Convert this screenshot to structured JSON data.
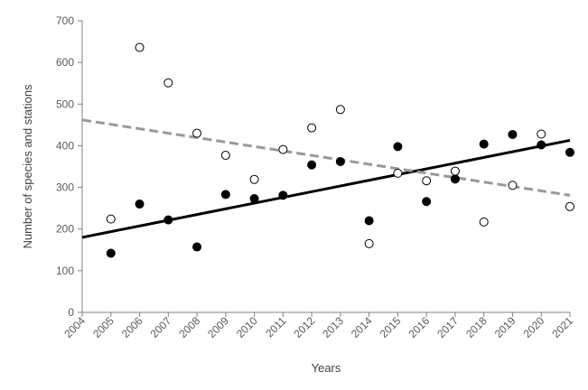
{
  "chart_data": {
    "type": "scatter",
    "xlabel": "Years",
    "ylabel": "Number of species and stations",
    "xlim": [
      2004,
      2021
    ],
    "ylim": [
      0,
      700
    ],
    "x_ticks": [
      "2004",
      "2005",
      "2006",
      "2007",
      "2008",
      "2009",
      "2010",
      "2011",
      "2012",
      "2013",
      "2014",
      "2015",
      "2016",
      "2017",
      "2018",
      "2019",
      "2020",
      "2021"
    ],
    "y_ticks": [
      "0",
      "100",
      "200",
      "300",
      "400",
      "500",
      "600",
      "700"
    ],
    "grid": false,
    "legend": "none",
    "series": [
      {
        "marker": "filled-circle",
        "color": "#000000",
        "x": [
          2005,
          2006,
          2007,
          2008,
          2009,
          2010,
          2011,
          2012,
          2013,
          2014,
          2015,
          2016,
          2017,
          2018,
          2019,
          2020,
          2021
        ],
        "y": [
          142,
          260,
          222,
          157,
          283,
          273,
          281,
          354,
          362,
          220,
          398,
          266,
          320,
          404,
          427,
          402,
          384
        ]
      },
      {
        "marker": "open-circle",
        "color": "#000000",
        "x": [
          2005,
          2006,
          2007,
          2008,
          2009,
          2010,
          2011,
          2012,
          2013,
          2014,
          2015,
          2016,
          2017,
          2018,
          2019,
          2020,
          2021
        ],
        "y": [
          224,
          636,
          551,
          430,
          377,
          319,
          391,
          443,
          487,
          165,
          334,
          316,
          339,
          217,
          305,
          428,
          254
        ]
      }
    ],
    "trendlines": [
      {
        "style": "solid",
        "color": "#000000",
        "x": [
          2004,
          2021
        ],
        "y": [
          180,
          413
        ]
      },
      {
        "style": "dashed",
        "color": "#999999",
        "x": [
          2004,
          2021
        ],
        "y": [
          462,
          281
        ]
      }
    ]
  }
}
